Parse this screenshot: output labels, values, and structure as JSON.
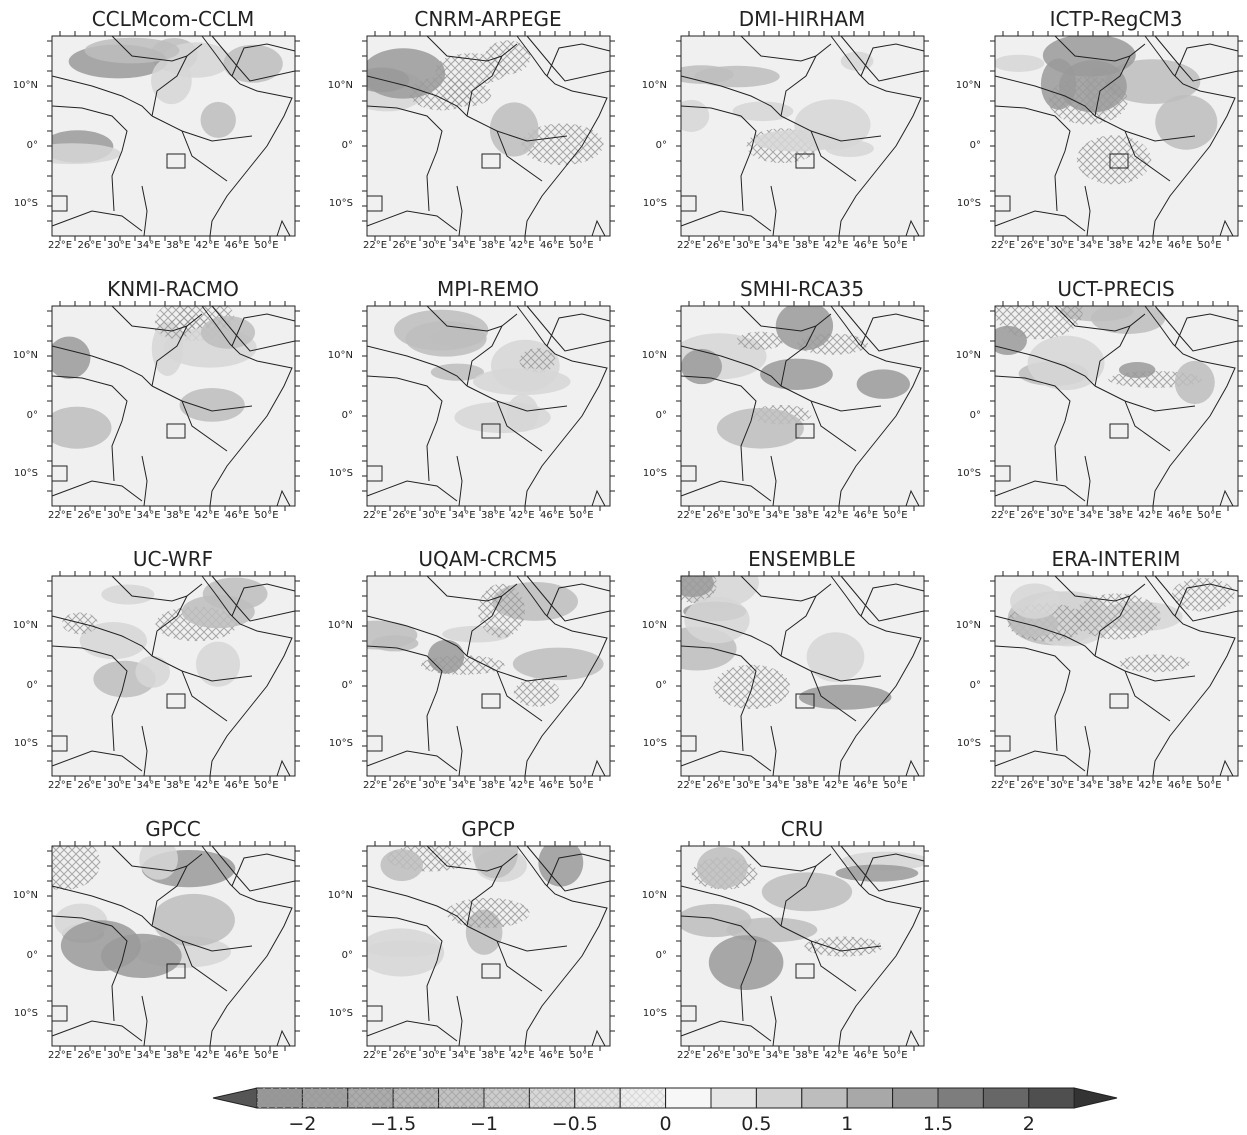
{
  "panels": [
    {
      "title": "CCLMcom-CCLM"
    },
    {
      "title": "CNRM-ARPEGE"
    },
    {
      "title": "DMI-HIRHAM"
    },
    {
      "title": "ICTP-RegCM3"
    },
    {
      "title": "KNMI-RACMO"
    },
    {
      "title": "MPI-REMO"
    },
    {
      "title": "SMHI-RCA35"
    },
    {
      "title": "UCT-PRECIS"
    },
    {
      "title": "UC-WRF"
    },
    {
      "title": "UQAM-CRCM5"
    },
    {
      "title": "ENSEMBLE"
    },
    {
      "title": "ERA-INTERIM"
    },
    {
      "title": "GPCC"
    },
    {
      "title": "GPCP"
    },
    {
      "title": "CRU"
    }
  ],
  "lon_labels": [
    "22°E",
    "26°E",
    "30°E",
    "34°E",
    "38°E",
    "42°E",
    "46°E",
    "50°E"
  ],
  "lat_labels": [
    "10°N",
    "0°",
    "10°S"
  ],
  "colorbar": {
    "labels": [
      "−2",
      "−1.5",
      "−1",
      "−0.5",
      "0",
      "0.5",
      "1",
      "1.5",
      "2"
    ]
  }
}
